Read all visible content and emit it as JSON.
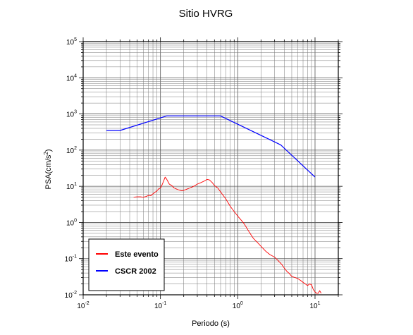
{
  "chart_data": {
    "type": "line",
    "title": "Sitio HVRG",
    "xlabel": "Periodo (s)",
    "ylabel": {
      "base": "PSA(cm/s",
      "exp": "2",
      "close": ")"
    },
    "xscale": "log",
    "yscale": "log",
    "xlim": [
      0.01,
      20
    ],
    "ylim": [
      0.01,
      100000
    ],
    "grid": true,
    "x_ticks": [
      {
        "base": "10",
        "exp": "-2",
        "value": 0.01
      },
      {
        "base": "10",
        "exp": "-1",
        "value": 0.1
      },
      {
        "base": "10",
        "exp": "0",
        "value": 1
      },
      {
        "base": "10",
        "exp": "1",
        "value": 10
      }
    ],
    "y_ticks": [
      {
        "base": "10",
        "exp": "-2",
        "value": 0.01
      },
      {
        "base": "10",
        "exp": "-1",
        "value": 0.1
      },
      {
        "base": "10",
        "exp": "0",
        "value": 1
      },
      {
        "base": "10",
        "exp": "1",
        "value": 10
      },
      {
        "base": "10",
        "exp": "2",
        "value": 100
      },
      {
        "base": "10",
        "exp": "3",
        "value": 1000
      },
      {
        "base": "10",
        "exp": "4",
        "value": 10000
      },
      {
        "base": "10",
        "exp": "5",
        "value": 100000
      }
    ],
    "legend_position": "bottom-left",
    "series": [
      {
        "name": "Este evento",
        "color": "#ff0000",
        "x": [
          0.045,
          0.05,
          0.055,
          0.06,
          0.065,
          0.07,
          0.075,
          0.08,
          0.085,
          0.09,
          0.095,
          0.1,
          0.105,
          0.11,
          0.115,
          0.12,
          0.13,
          0.14,
          0.15,
          0.17,
          0.19,
          0.21,
          0.24,
          0.27,
          0.3,
          0.33,
          0.37,
          0.4,
          0.43,
          0.47,
          0.5,
          0.55,
          0.6,
          0.7,
          0.8,
          0.9,
          1.0,
          1.2,
          1.4,
          1.6,
          1.8,
          2.0,
          2.3,
          2.6,
          3.0,
          3.3,
          3.7,
          4.0,
          4.3,
          4.7,
          5.0,
          5.5,
          6.0,
          6.5,
          7.0,
          7.5,
          8.0,
          8.5,
          9.0,
          9.5,
          10.0,
          10.5,
          11.0,
          11.5,
          12.0
        ],
        "y": [
          5.0,
          5.1,
          5.1,
          5.0,
          5.2,
          5.6,
          5.5,
          6.2,
          6.8,
          7.5,
          8.5,
          9.0,
          11.0,
          14.0,
          18.0,
          16.0,
          11.5,
          10.5,
          9.0,
          8.0,
          7.5,
          8.0,
          9.0,
          10.0,
          11.5,
          12.5,
          14.0,
          15.5,
          15.0,
          12.5,
          10.5,
          9.0,
          7.0,
          4.5,
          2.8,
          2.0,
          1.5,
          0.95,
          0.55,
          0.36,
          0.28,
          0.22,
          0.16,
          0.13,
          0.11,
          0.09,
          0.07,
          0.055,
          0.045,
          0.038,
          0.032,
          0.03,
          0.028,
          0.025,
          0.022,
          0.02,
          0.018,
          0.02,
          0.019,
          0.014,
          0.012,
          0.011,
          0.011,
          0.013,
          0.011
        ]
      },
      {
        "name": "CSCR 2002",
        "color": "#0000ff",
        "x": [
          0.02,
          0.03,
          0.12,
          0.6,
          3.6,
          10.0
        ],
        "y": [
          350,
          350,
          880,
          880,
          140,
          18
        ]
      }
    ]
  }
}
